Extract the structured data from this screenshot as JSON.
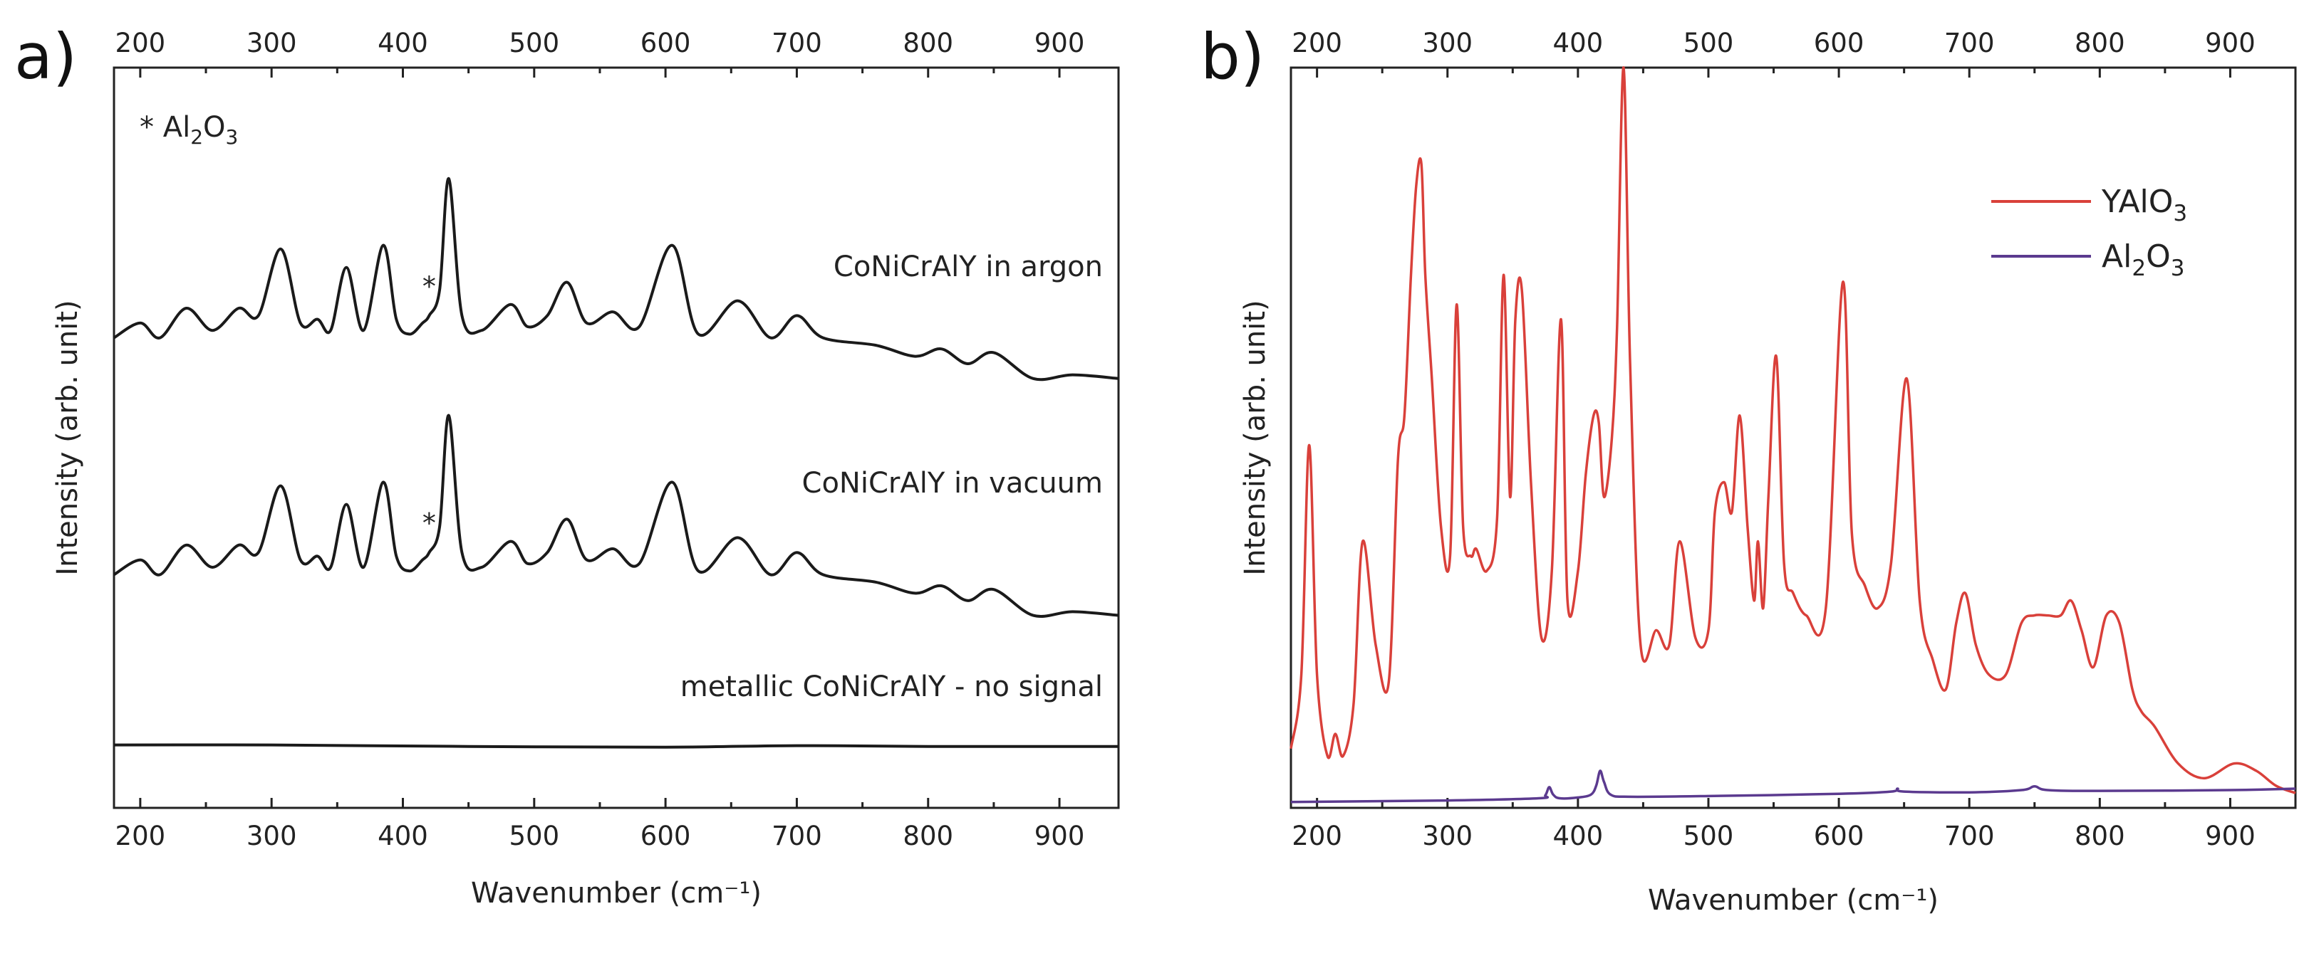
{
  "chart_data": [
    {
      "type": "line",
      "panel_label": "a)",
      "xlabel": "Wavenumber (cm⁻¹)",
      "ylabel": "Intensity (arb. unit)",
      "xlim": [
        180,
        945
      ],
      "ylim": [
        0,
        100
      ],
      "xticks_bottom": [
        "200",
        "300",
        "400",
        "500",
        "600",
        "700",
        "800",
        "900"
      ],
      "xticks_top": [
        "200",
        "300",
        "400",
        "500",
        "600",
        "700",
        "800",
        "900"
      ],
      "annotation_text": "* Al",
      "annotation_sub1": "2",
      "annotation_mid": "O",
      "annotation_sub2": "3",
      "grid": false,
      "legend": "none",
      "series": [
        {
          "name": "CoNiCrAlY in argon",
          "color": "#1a1a1a",
          "baseline": 65.5,
          "x": [
            180,
            200,
            215,
            235,
            255,
            275,
            290,
            307,
            322,
            335,
            345,
            357,
            370,
            385,
            395,
            405,
            415,
            420,
            428,
            435,
            445,
            460,
            482,
            495,
            510,
            525,
            540,
            560,
            580,
            605,
            625,
            655,
            680,
            700,
            720,
            760,
            790,
            810,
            830,
            850,
            880,
            910,
            945
          ],
          "y": [
            63.5,
            65.5,
            63.5,
            67.5,
            64.5,
            67.5,
            66.5,
            75.5,
            65.5,
            66.0,
            64.5,
            73.0,
            64.5,
            76.0,
            66.0,
            64.0,
            65.5,
            66.5,
            70.0,
            85.0,
            66.5,
            64.5,
            68.0,
            65.0,
            66.5,
            71.0,
            65.5,
            67.0,
            65.0,
            76.0,
            64.0,
            68.5,
            63.5,
            66.5,
            63.5,
            62.5,
            61.0,
            62.0,
            60.0,
            61.5,
            58.0,
            58.5,
            58.0
          ],
          "star_x": 420
        },
        {
          "name": "CoNiCrAlY in vacuum",
          "color": "#1a1a1a",
          "baseline": 33.5,
          "x": [
            180,
            200,
            215,
            235,
            255,
            275,
            290,
            307,
            322,
            335,
            345,
            357,
            370,
            385,
            395,
            405,
            415,
            420,
            428,
            435,
            445,
            460,
            482,
            495,
            510,
            525,
            540,
            560,
            580,
            605,
            625,
            655,
            680,
            700,
            720,
            760,
            790,
            810,
            830,
            850,
            880,
            910,
            945
          ],
          "y": [
            31.5,
            33.5,
            31.5,
            35.5,
            32.5,
            35.5,
            34.5,
            43.5,
            33.5,
            34.0,
            32.5,
            41.0,
            32.5,
            44.0,
            34.0,
            32.0,
            33.5,
            34.5,
            38.0,
            53.0,
            34.5,
            32.5,
            36.0,
            33.0,
            34.5,
            39.0,
            33.5,
            35.0,
            33.0,
            44.0,
            32.0,
            36.5,
            31.5,
            34.5,
            31.5,
            30.5,
            29.0,
            30.0,
            28.0,
            29.5,
            26.0,
            26.5,
            26.0
          ],
          "star_x": 420
        },
        {
          "name": "metallic CoNiCrAlY - no signal",
          "color": "#1a1a1a",
          "baseline": 8.5,
          "x": [
            180,
            300,
            450,
            600,
            700,
            800,
            945
          ],
          "y": [
            8.5,
            8.5,
            8.3,
            8.2,
            8.4,
            8.3,
            8.3
          ]
        }
      ]
    },
    {
      "type": "line",
      "panel_label": "b)",
      "xlabel": "Wavenumber (cm⁻¹)",
      "ylabel": "Intensity (arb. unit)",
      "xlim": [
        180,
        950
      ],
      "ylim": [
        0,
        100
      ],
      "xticks_bottom": [
        "200",
        "300",
        "400",
        "500",
        "600",
        "700",
        "800",
        "900"
      ],
      "xticks_top": [
        "200",
        "300",
        "400",
        "500",
        "600",
        "700",
        "800",
        "900"
      ],
      "grid": false,
      "legend": "top-right",
      "series": [
        {
          "name": "YAlO",
          "name_sub": "3",
          "color": "#d9403a",
          "x": [
            180,
            188,
            194,
            200,
            208,
            214,
            220,
            228,
            235,
            245,
            255,
            262,
            267,
            272,
            276,
            280,
            283,
            288,
            295,
            302,
            307,
            312,
            318,
            322,
            330,
            338,
            343,
            348,
            352,
            357,
            364,
            372,
            380,
            387,
            392,
            400,
            406,
            412,
            416,
            420,
            426,
            430,
            435,
            440,
            448,
            460,
            470,
            478,
            490,
            500,
            505,
            512,
            518,
            524,
            530,
            535,
            538,
            542,
            546,
            552,
            558,
            565,
            575,
            590,
            603,
            610,
            620,
            630,
            640,
            652,
            662,
            672,
            682,
            690,
            697,
            705,
            715,
            728,
            740,
            750,
            760,
            770,
            778,
            786,
            795,
            805,
            815,
            825,
            832,
            842,
            860,
            880,
            903,
            920,
            935,
            950
          ],
          "y": [
            8,
            18,
            49,
            18,
            7,
            10,
            7,
            14,
            36,
            22,
            17,
            47,
            53,
            72,
            84,
            87,
            72,
            58,
            38,
            34,
            68,
            38,
            34,
            35,
            32,
            39,
            72,
            42,
            66,
            70,
            44,
            23,
            32,
            66,
            28,
            32,
            45,
            53,
            52,
            42,
            50,
            65,
            100,
            60,
            22,
            24,
            22,
            36,
            23,
            24,
            40,
            44,
            40,
            53,
            38,
            28,
            36,
            27,
            42,
            61,
            33,
            29,
            26,
            27,
            71,
            37,
            30,
            27,
            33,
            58,
            28,
            20,
            16,
            25,
            29,
            22,
            18,
            18,
            25,
            26,
            26,
            26,
            28,
            24,
            19,
            26,
            25,
            16,
            13,
            11,
            6,
            4,
            6,
            5,
            3,
            2
          ]
        },
        {
          "name": "Al",
          "name_sub1": "2",
          "name_mid": "O",
          "name_sub2": "3",
          "color": "#5b3a8f",
          "x": [
            180,
            300,
            370,
            375,
            378,
            381,
            386,
            400,
            410,
            414,
            417,
            420,
            425,
            440,
            500,
            600,
            640,
            645,
            650,
            700,
            740,
            750,
            760,
            800,
            900,
            950
          ],
          "y": [
            0.8,
            1.0,
            1.3,
            1.7,
            2.8,
            1.8,
            1.3,
            1.4,
            1.8,
            3.0,
            5.0,
            3.5,
            1.8,
            1.5,
            1.6,
            1.9,
            2.2,
            2.6,
            2.2,
            2.1,
            2.4,
            2.9,
            2.4,
            2.3,
            2.4,
            2.6
          ]
        }
      ]
    }
  ]
}
